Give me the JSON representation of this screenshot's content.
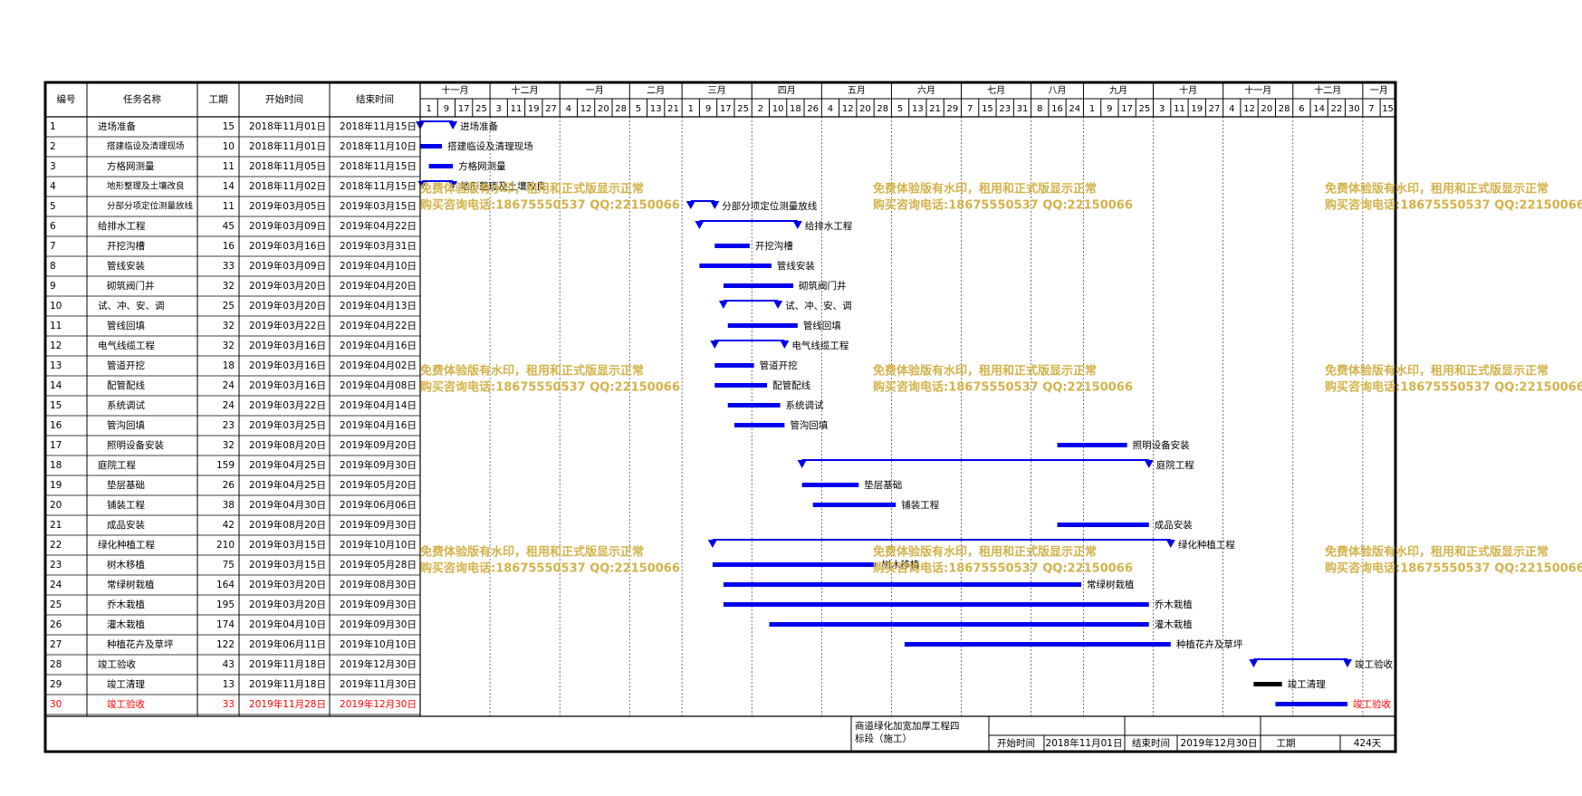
{
  "table": {
    "headers": {
      "id": "编号",
      "name": "任务名称",
      "duration": "工期",
      "start": "开始时间",
      "end": "结束时间"
    }
  },
  "timeline": {
    "months": [
      "十一月",
      "十二月",
      "一月",
      "二月",
      "三月",
      "四月",
      "五月",
      "六月",
      "七月",
      "八月",
      "九月",
      "十月",
      "十一月",
      "十二月",
      "一月"
    ],
    "day_ticks": [
      1,
      9,
      17,
      25,
      3,
      11,
      19,
      27,
      4,
      12,
      20,
      28,
      5,
      13,
      21,
      1,
      9,
      17,
      25,
      2,
      10,
      18,
      26,
      4,
      12,
      20,
      28,
      5,
      13,
      21,
      29,
      7,
      15,
      23,
      31,
      8,
      16,
      24,
      1,
      9,
      17,
      25,
      3,
      11,
      19,
      27,
      4,
      12,
      20,
      28,
      6,
      14,
      22,
      30,
      7,
      15
    ]
  },
  "watermark": {
    "line1": "免费体验版有水印，租用和正式版显示正常",
    "line2": "购买咨询电话:18675550537 QQ:22150066"
  },
  "footer": {
    "project_name": "商道绿化加宽加厚工程四标段（施工）",
    "start_label": "开始时间",
    "start_value": "2018年11月01日",
    "end_label": "结束时间",
    "end_value": "2019年12月30日",
    "duration_label": "工期",
    "duration_value": "424天"
  },
  "colors": {
    "bar": "#0000ee",
    "summary": "#0000ee",
    "highlight_text": "#ff0000",
    "done_bar": "#000000",
    "watermark": "#d4b24a"
  },
  "chart_data": {
    "type": "gantt",
    "x_range": [
      "2018-11-01",
      "2020-01-22"
    ],
    "tasks": [
      {
        "id": "1",
        "name": "进场准备",
        "duration": "15",
        "start_text": "2018年11月01日",
        "end_text": "2018年11月15日",
        "start": "2018-11-01",
        "end": "2018-11-15",
        "kind": "summary",
        "bar_label": "进场准备"
      },
      {
        "id": "2",
        "name": "搭建临设及清理现场",
        "duration": "10",
        "start_text": "2018年11月01日",
        "end_text": "2018年11月10日",
        "start": "2018-11-01",
        "end": "2018-11-10",
        "kind": "task",
        "bar_label": "搭建临设及清理现场"
      },
      {
        "id": "3",
        "name": "方格网测量",
        "duration": "11",
        "start_text": "2018年11月05日",
        "end_text": "2018年11月15日",
        "start": "2018-11-05",
        "end": "2018-11-15",
        "kind": "task",
        "bar_label": "方格网测量"
      },
      {
        "id": "4",
        "name": "地形整理及土壤改良",
        "duration": "14",
        "start_text": "2018年11月02日",
        "end_text": "2018年11月15日",
        "start": "2018-11-02",
        "end": "2018-11-15",
        "kind": "summary",
        "bar_label": "地形整理及土壤改良"
      },
      {
        "id": "5",
        "name": "分部分项定位测量放线",
        "duration": "11",
        "start_text": "2019年03月05日",
        "end_text": "2019年03月15日",
        "start": "2019-03-05",
        "end": "2019-03-15",
        "kind": "summary",
        "bar_label": "分部分项定位测量放线"
      },
      {
        "id": "6",
        "name": "给排水工程",
        "duration": "45",
        "start_text": "2019年03月09日",
        "end_text": "2019年04月22日",
        "start": "2019-03-09",
        "end": "2019-04-22",
        "kind": "summary",
        "bar_label": "给排水工程"
      },
      {
        "id": "7",
        "name": "开挖沟槽",
        "duration": "16",
        "start_text": "2019年03月16日",
        "end_text": "2019年03月31日",
        "start": "2019-03-16",
        "end": "2019-03-31",
        "kind": "task",
        "bar_label": "开挖沟槽"
      },
      {
        "id": "8",
        "name": "管线安装",
        "duration": "33",
        "start_text": "2019年03月09日",
        "end_text": "2019年04月10日",
        "start": "2019-03-09",
        "end": "2019-04-10",
        "kind": "task",
        "bar_label": "管线安装"
      },
      {
        "id": "9",
        "name": "砌筑阀门井",
        "duration": "32",
        "start_text": "2019年03月20日",
        "end_text": "2019年04月20日",
        "start": "2019-03-20",
        "end": "2019-04-20",
        "kind": "task",
        "bar_label": "砌筑阀门井"
      },
      {
        "id": "10",
        "name": "试、冲、安、调",
        "duration": "25",
        "start_text": "2019年03月20日",
        "end_text": "2019年04月13日",
        "start": "2019-03-20",
        "end": "2019-04-13",
        "kind": "summary",
        "bar_label": "试、冲、安、调"
      },
      {
        "id": "11",
        "name": "管线回填",
        "duration": "32",
        "start_text": "2019年03月22日",
        "end_text": "2019年04月22日",
        "start": "2019-03-22",
        "end": "2019-04-22",
        "kind": "task",
        "bar_label": "管线回填"
      },
      {
        "id": "12",
        "name": "电气线缆工程",
        "duration": "32",
        "start_text": "2019年03月16日",
        "end_text": "2019年04月16日",
        "start": "2019-03-16",
        "end": "2019-04-16",
        "kind": "summary",
        "bar_label": "电气线缆工程"
      },
      {
        "id": "13",
        "name": "管道开挖",
        "duration": "18",
        "start_text": "2019年03月16日",
        "end_text": "2019年04月02日",
        "start": "2019-03-16",
        "end": "2019-04-02",
        "kind": "task",
        "bar_label": "管道开挖"
      },
      {
        "id": "14",
        "name": "配管配线",
        "duration": "24",
        "start_text": "2019年03月16日",
        "end_text": "2019年04月08日",
        "start": "2019-03-16",
        "end": "2019-04-08",
        "kind": "task",
        "bar_label": "配管配线"
      },
      {
        "id": "15",
        "name": "系统调试",
        "duration": "24",
        "start_text": "2019年03月22日",
        "end_text": "2019年04月14日",
        "start": "2019-03-22",
        "end": "2019-04-14",
        "kind": "task",
        "bar_label": "系统调试"
      },
      {
        "id": "16",
        "name": "管沟回填",
        "duration": "23",
        "start_text": "2019年03月25日",
        "end_text": "2019年04月16日",
        "start": "2019-03-25",
        "end": "2019-04-16",
        "kind": "task",
        "bar_label": "管沟回填"
      },
      {
        "id": "17",
        "name": "照明设备安装",
        "duration": "32",
        "start_text": "2019年08月20日",
        "end_text": "2019年09月20日",
        "start": "2019-08-20",
        "end": "2019-09-20",
        "kind": "task",
        "bar_label": "照明设备安装"
      },
      {
        "id": "18",
        "name": "庭院工程",
        "duration": "159",
        "start_text": "2019年04月25日",
        "end_text": "2019年09月30日",
        "start": "2019-04-25",
        "end": "2019-09-30",
        "kind": "summary",
        "bar_label": "庭院工程"
      },
      {
        "id": "19",
        "name": "垫层基础",
        "duration": "26",
        "start_text": "2019年04月25日",
        "end_text": "2019年05月20日",
        "start": "2019-04-25",
        "end": "2019-05-20",
        "kind": "task",
        "bar_label": "垫层基础"
      },
      {
        "id": "20",
        "name": "铺装工程",
        "duration": "38",
        "start_text": "2019年04月30日",
        "end_text": "2019年06月06日",
        "start": "2019-04-30",
        "end": "2019-06-06",
        "kind": "task",
        "bar_label": "铺装工程"
      },
      {
        "id": "21",
        "name": "成品安装",
        "duration": "42",
        "start_text": "2019年08月20日",
        "end_text": "2019年09月30日",
        "start": "2019-08-20",
        "end": "2019-09-30",
        "kind": "task",
        "bar_label": "成品安装"
      },
      {
        "id": "22",
        "name": "绿化种植工程",
        "duration": "210",
        "start_text": "2019年03月15日",
        "end_text": "2019年10月10日",
        "start": "2019-03-15",
        "end": "2019-10-10",
        "kind": "summary",
        "bar_label": "绿化种植工程"
      },
      {
        "id": "23",
        "name": "树木移植",
        "duration": "75",
        "start_text": "2019年03月15日",
        "end_text": "2019年05月28日",
        "start": "2019-03-15",
        "end": "2019-05-28",
        "kind": "task",
        "bar_label": "树木移植"
      },
      {
        "id": "24",
        "name": "常绿树栽植",
        "duration": "164",
        "start_text": "2019年03月20日",
        "end_text": "2019年08月30日",
        "start": "2019-03-20",
        "end": "2019-08-30",
        "kind": "task",
        "bar_label": "常绿树栽植"
      },
      {
        "id": "25",
        "name": "乔木栽植",
        "duration": "195",
        "start_text": "2019年03月20日",
        "end_text": "2019年09月30日",
        "start": "2019-03-20",
        "end": "2019-09-30",
        "kind": "task",
        "bar_label": "乔木栽植"
      },
      {
        "id": "26",
        "name": "灌木栽植",
        "duration": "174",
        "start_text": "2019年04月10日",
        "end_text": "2019年09月30日",
        "start": "2019-04-10",
        "end": "2019-09-30",
        "kind": "task",
        "bar_label": "灌木栽植"
      },
      {
        "id": "27",
        "name": "种植花卉及草坪",
        "duration": "122",
        "start_text": "2019年06月11日",
        "end_text": "2019年10月10日",
        "start": "2019-06-11",
        "end": "2019-10-10",
        "kind": "task",
        "bar_label": "种植花卉及草坪"
      },
      {
        "id": "28",
        "name": "竣工验收",
        "duration": "43",
        "start_text": "2019年11月18日",
        "end_text": "2019年12月30日",
        "start": "2019-11-18",
        "end": "2019-12-30",
        "kind": "summary",
        "bar_label": "竣工验收"
      },
      {
        "id": "29",
        "name": "竣工清理",
        "duration": "13",
        "start_text": "2019年11月18日",
        "end_text": "2019年11月30日",
        "start": "2019-11-18",
        "end": "2019-11-30",
        "kind": "done",
        "bar_label": "竣工清理"
      },
      {
        "id": "30",
        "name": "竣工验收",
        "duration": "33",
        "start_text": "2019年11月28日",
        "end_text": "2019年12月30日",
        "start": "2019-11-28",
        "end": "2019-12-30",
        "kind": "task",
        "bar_label": "竣工验收",
        "highlight": true
      }
    ]
  }
}
